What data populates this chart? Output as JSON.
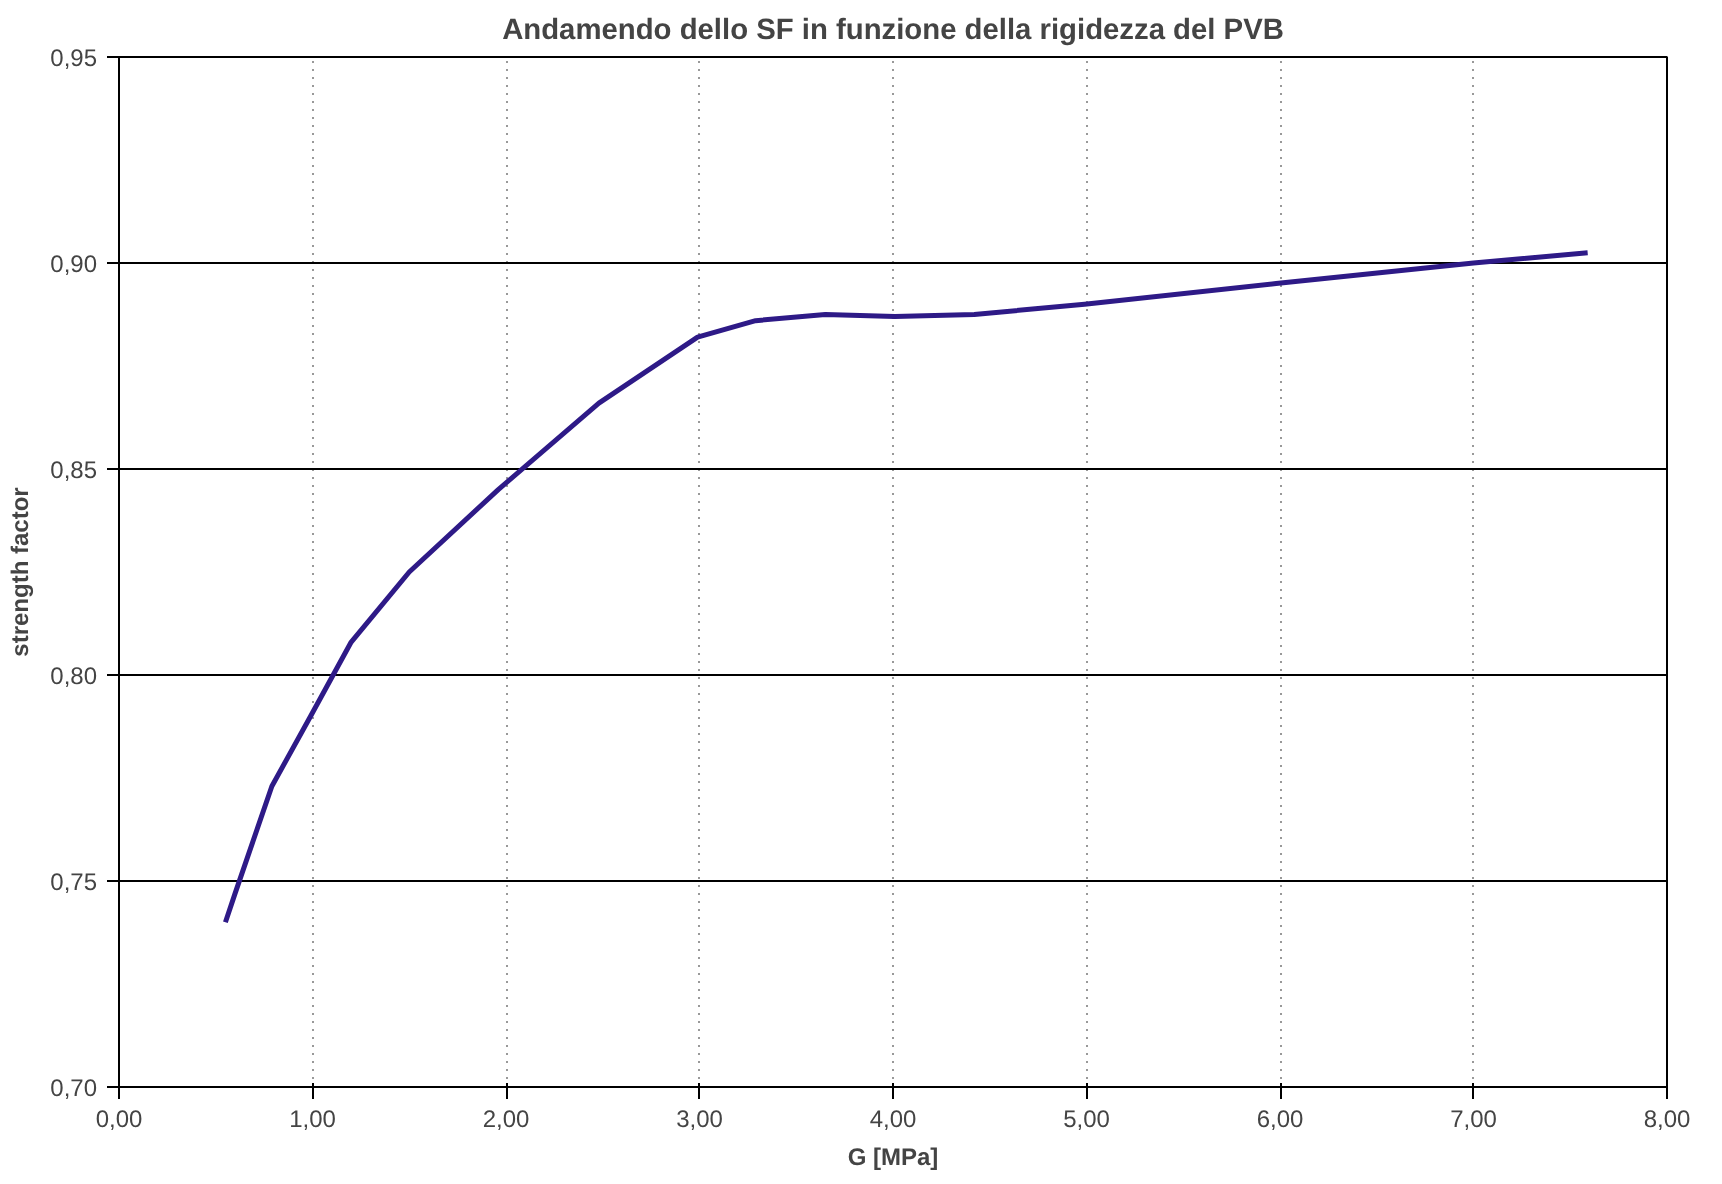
{
  "chart_data": {
    "type": "line",
    "title": "Andamendo dello SF in funzione della rigidezza del PVB",
    "xlabel": "G [MPa]",
    "ylabel": "strength factor",
    "x": [
      0.55,
      0.6,
      0.79,
      0.99,
      1.2,
      1.5,
      1.96,
      2.48,
      2.99,
      3.29,
      3.65,
      4.01,
      4.42,
      4.99,
      5.98,
      7.0,
      7.59
    ],
    "series": [
      {
        "color": "#2e1a87",
        "values": [
          0.74,
          0.747,
          0.773,
          0.79,
          0.808,
          0.825,
          0.845,
          0.866,
          0.882,
          0.886,
          0.8875,
          0.887,
          0.8875,
          0.89,
          0.895,
          0.9,
          0.9025
        ]
      }
    ],
    "xlim": [
      0,
      8
    ],
    "ylim": [
      0.7,
      0.95
    ],
    "xticks": [
      {
        "value": 0,
        "label": "0,00"
      },
      {
        "value": 1,
        "label": "1,00"
      },
      {
        "value": 2,
        "label": "2,00"
      },
      {
        "value": 3,
        "label": "3,00"
      },
      {
        "value": 4,
        "label": "4,00"
      },
      {
        "value": 5,
        "label": "5,00"
      },
      {
        "value": 6,
        "label": "6,00"
      },
      {
        "value": 7,
        "label": "7,00"
      },
      {
        "value": 8,
        "label": "8,00"
      }
    ],
    "yticks": [
      {
        "value": 0.7,
        "label": "0,70"
      },
      {
        "value": 0.75,
        "label": "0,75"
      },
      {
        "value": 0.8,
        "label": "0,80"
      },
      {
        "value": 0.85,
        "label": "0,85"
      },
      {
        "value": 0.9,
        "label": "0,90"
      },
      {
        "value": 0.95,
        "label": "0,95"
      }
    ],
    "grid": true,
    "marker": "none",
    "line_style": "solid"
  }
}
